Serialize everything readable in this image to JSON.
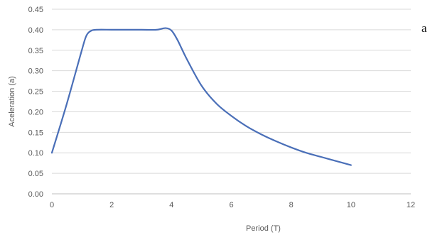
{
  "side_text": "a",
  "chart_data": {
    "type": "line",
    "title": "",
    "xlabel": "Period (T)",
    "ylabel": "Aceleration (a)",
    "xlim": [
      0,
      12
    ],
    "ylim": [
      0,
      0.45
    ],
    "x_ticks": [
      0,
      2,
      4,
      6,
      8,
      10,
      12
    ],
    "y_ticks": [
      0.0,
      0.05,
      0.1,
      0.15,
      0.2,
      0.25,
      0.3,
      0.35,
      0.4,
      0.45
    ],
    "grid": {
      "horizontal": true,
      "vertical": false
    },
    "legend": "none",
    "line_color": "#4a6fb8",
    "series": [
      {
        "x": [
          0,
          0.5,
          1.0,
          1.15,
          1.3,
          1.5,
          2.0,
          2.5,
          3.0,
          3.5,
          3.8,
          4.0,
          4.2,
          4.5,
          5.0,
          5.5,
          6.0,
          6.5,
          7.0,
          7.5,
          8.0,
          8.5,
          9.0,
          9.5,
          10.0
        ],
        "y": [
          0.1,
          0.22,
          0.35,
          0.385,
          0.397,
          0.4,
          0.4,
          0.4,
          0.4,
          0.4,
          0.404,
          0.398,
          0.375,
          0.33,
          0.264,
          0.22,
          0.19,
          0.165,
          0.145,
          0.128,
          0.113,
          0.1,
          0.09,
          0.08,
          0.07
        ]
      }
    ]
  }
}
